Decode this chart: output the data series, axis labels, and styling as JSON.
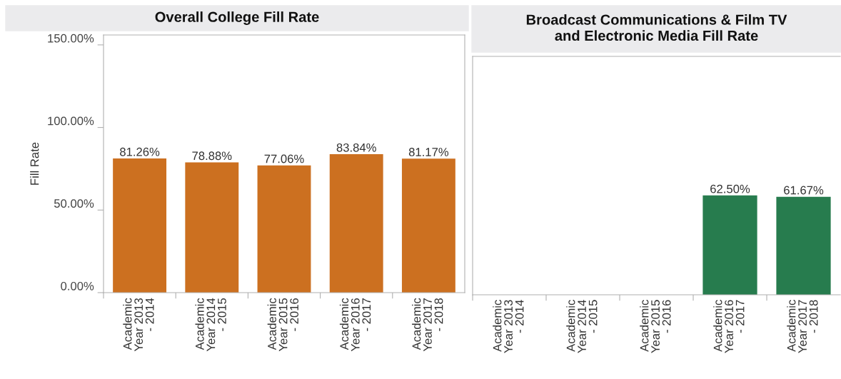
{
  "chart_data": [
    {
      "type": "bar",
      "title": "Overall College Fill Rate",
      "ylabel": "Fill Rate",
      "categories": [
        "Academic\nYear 2013\n- 2014",
        "Academic\nYear 2014\n- 2015",
        "Academic\nYear 2015\n- 2016",
        "Academic\nYear 2016\n- 2017",
        "Academic\nYear 2017\n- 2018"
      ],
      "values": [
        81.26,
        78.88,
        77.06,
        83.84,
        81.17
      ],
      "color": "#cc7020",
      "value_labels": [
        "81.26%",
        "78.88%",
        "77.06%",
        "83.84%",
        "81.17%"
      ],
      "ylim": [
        0,
        156
      ],
      "yticks": [
        {
          "value": 0,
          "label": "0.00%"
        },
        {
          "value": 50,
          "label": "50.00%"
        },
        {
          "value": 100,
          "label": "100.00%"
        },
        {
          "value": 150,
          "label": "150.00%"
        }
      ],
      "grid": false,
      "legend": false
    },
    {
      "type": "bar",
      "title": "Broadcast Communications & Film TV\nand Electronic Media Fill Rate",
      "categories": [
        "Academic\nYear 2013\n- 2014",
        "Academic\nYear 2014\n- 2015",
        "Academic\nYear 2015\n- 2016",
        "Academic\nYear 2016\n- 2017",
        "Academic\nYear 2017\n- 2018"
      ],
      "values": [
        null,
        null,
        null,
        62.5,
        61.67
      ],
      "color": "#277c4e",
      "value_labels": [
        null,
        null,
        null,
        "62.50%",
        "61.67%"
      ],
      "ylim": [
        0,
        150
      ],
      "tick_labels": "x",
      "grid": false,
      "legend": false
    }
  ]
}
